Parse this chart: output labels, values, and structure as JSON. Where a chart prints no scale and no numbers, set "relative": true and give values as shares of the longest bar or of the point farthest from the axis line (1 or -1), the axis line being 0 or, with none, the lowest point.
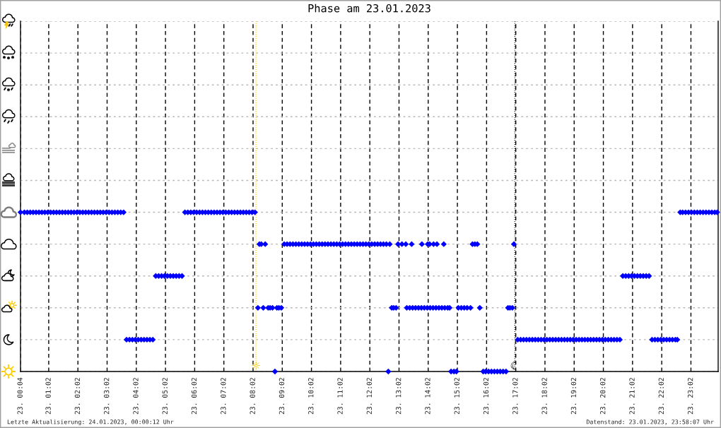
{
  "chart_data": {
    "type": "scatter",
    "title": "Phase am 23.01.2023",
    "color": "#0000ff",
    "marker": "diamond",
    "relative": true,
    "x": [
      "2023-01-23T00:04",
      "2023-01-23T00:12",
      "2023-01-23T00:18",
      "2023-01-23T00:24",
      "2023-01-23T00:30",
      "2023-01-23T00:36",
      "2023-01-23T00:42",
      "2023-01-23T00:48",
      "2023-01-23T00:54",
      "2023-01-23T01:00",
      "2023-01-23T01:06",
      "2023-01-23T01:12",
      "2023-01-23T01:18",
      "2023-01-23T01:24",
      "2023-01-23T01:30",
      "2023-01-23T01:36",
      "2023-01-23T01:42",
      "2023-01-23T01:48",
      "2023-01-23T01:54",
      "2023-01-23T02:00",
      "2023-01-23T02:06",
      "2023-01-23T02:12",
      "2023-01-23T02:18",
      "2023-01-23T02:24",
      "2023-01-23T02:30",
      "2023-01-23T02:36",
      "2023-01-23T02:42",
      "2023-01-23T02:48",
      "2023-01-23T02:54",
      "2023-01-23T03:00",
      "2023-01-23T03:06",
      "2023-01-23T03:12",
      "2023-01-23T03:18",
      "2023-01-23T03:24",
      "2023-01-23T03:30",
      "2023-01-23T03:36",
      "2023-01-23T03:42",
      "2023-01-23T03:48",
      "2023-01-23T03:54",
      "2023-01-23T04:00",
      "2023-01-23T04:06",
      "2023-01-23T04:12",
      "2023-01-23T04:18",
      "2023-01-23T04:24",
      "2023-01-23T04:30",
      "2023-01-23T04:36",
      "2023-01-23T04:42",
      "2023-01-23T04:48",
      "2023-01-23T04:54",
      "2023-01-23T05:00",
      "2023-01-23T05:06",
      "2023-01-23T05:12",
      "2023-01-23T05:18",
      "2023-01-23T05:24",
      "2023-01-23T05:30",
      "2023-01-23T05:36",
      "2023-01-23T05:42",
      "2023-01-23T05:48",
      "2023-01-23T05:54",
      "2023-01-23T06:00",
      "2023-01-23T06:06",
      "2023-01-23T06:12",
      "2023-01-23T06:18",
      "2023-01-23T06:24",
      "2023-01-23T06:30",
      "2023-01-23T06:36",
      "2023-01-23T06:42",
      "2023-01-23T06:48",
      "2023-01-23T06:54",
      "2023-01-23T07:00",
      "2023-01-23T07:06",
      "2023-01-23T07:12",
      "2023-01-23T07:18",
      "2023-01-23T07:24",
      "2023-01-23T07:30",
      "2023-01-23T07:36",
      "2023-01-23T07:42",
      "2023-01-23T07:48",
      "2023-01-23T07:54",
      "2023-01-23T08:00",
      "2023-01-23T08:06",
      "2023-01-23T08:12",
      "2023-01-23T08:15",
      "2023-01-23T08:19",
      "2023-01-23T08:23",
      "2023-01-23T08:27",
      "2023-01-23T08:33",
      "2023-01-23T08:37",
      "2023-01-23T08:42",
      "2023-01-23T08:47",
      "2023-01-23T08:51",
      "2023-01-23T08:55",
      "2023-01-23T09:00",
      "2023-01-23T09:06",
      "2023-01-23T09:12",
      "2023-01-23T09:18",
      "2023-01-23T09:24",
      "2023-01-23T09:30",
      "2023-01-23T09:36",
      "2023-01-23T09:42",
      "2023-01-23T09:48",
      "2023-01-23T09:54",
      "2023-01-23T10:00",
      "2023-01-23T10:06",
      "2023-01-23T10:12",
      "2023-01-23T10:18",
      "2023-01-23T10:24",
      "2023-01-23T10:30",
      "2023-01-23T10:36",
      "2023-01-23T10:42",
      "2023-01-23T10:48",
      "2023-01-23T10:54",
      "2023-01-23T11:00",
      "2023-01-23T11:06",
      "2023-01-23T11:12",
      "2023-01-23T11:18",
      "2023-01-23T11:24",
      "2023-01-23T11:30",
      "2023-01-23T11:36",
      "2023-01-23T11:42",
      "2023-01-23T11:48",
      "2023-01-23T11:54",
      "2023-01-23T12:00",
      "2023-01-23T12:06",
      "2023-01-23T12:12",
      "2023-01-23T12:18",
      "2023-01-23T12:24",
      "2023-01-23T12:30",
      "2023-01-23T12:36",
      "2023-01-23T12:40",
      "2023-01-23T12:43",
      "2023-01-23T12:47",
      "2023-01-23T12:51",
      "2023-01-23T12:56",
      "2023-01-23T13:00",
      "2023-01-23T13:08",
      "2023-01-23T13:16",
      "2023-01-23T13:18",
      "2023-01-23T13:24",
      "2023-01-23T13:28",
      "2023-01-23T13:30",
      "2023-01-23T13:36",
      "2023-01-23T13:42",
      "2023-01-23T13:48",
      "2023-01-23T13:49",
      "2023-01-23T13:54",
      "2023-01-23T14:00",
      "2023-01-23T14:01",
      "2023-01-23T14:05",
      "2023-01-23T14:06",
      "2023-01-23T14:12",
      "2023-01-23T14:13",
      "2023-01-23T14:18",
      "2023-01-23T14:20",
      "2023-01-23T14:24",
      "2023-01-23T14:30",
      "2023-01-23T14:34",
      "2023-01-23T14:36",
      "2023-01-23T14:42",
      "2023-01-23T14:46",
      "2023-01-23T14:49",
      "2023-01-23T14:55",
      "2023-01-23T15:00",
      "2023-01-23T15:04",
      "2023-01-23T15:10",
      "2023-01-23T15:16",
      "2023-01-23T15:22",
      "2023-01-23T15:29",
      "2023-01-23T15:33",
      "2023-01-23T15:38",
      "2023-01-23T15:43",
      "2023-01-23T15:48",
      "2023-01-23T15:55",
      "2023-01-23T16:00",
      "2023-01-23T16:06",
      "2023-01-23T16:12",
      "2023-01-23T16:18",
      "2023-01-23T16:24",
      "2023-01-23T16:30",
      "2023-01-23T16:36",
      "2023-01-23T16:42",
      "2023-01-23T16:46",
      "2023-01-23T16:50",
      "2023-01-23T16:55",
      "2023-01-23T16:58",
      "2023-01-23T17:06",
      "2023-01-23T17:12",
      "2023-01-23T17:18",
      "2023-01-23T17:24",
      "2023-01-23T17:30",
      "2023-01-23T17:36",
      "2023-01-23T17:42",
      "2023-01-23T17:48",
      "2023-01-23T17:54",
      "2023-01-23T18:00",
      "2023-01-23T18:06",
      "2023-01-23T18:12",
      "2023-01-23T18:18",
      "2023-01-23T18:24",
      "2023-01-23T18:30",
      "2023-01-23T18:36",
      "2023-01-23T18:42",
      "2023-01-23T18:48",
      "2023-01-23T18:54",
      "2023-01-23T19:00",
      "2023-01-23T19:06",
      "2023-01-23T19:12",
      "2023-01-23T19:18",
      "2023-01-23T19:24",
      "2023-01-23T19:30",
      "2023-01-23T19:36",
      "2023-01-23T19:42",
      "2023-01-23T19:48",
      "2023-01-23T19:54",
      "2023-01-23T20:00",
      "2023-01-23T20:06",
      "2023-01-23T20:12",
      "2023-01-23T20:18",
      "2023-01-23T20:24",
      "2023-01-23T20:30",
      "2023-01-23T20:36",
      "2023-01-23T20:42",
      "2023-01-23T20:48",
      "2023-01-23T20:54",
      "2023-01-23T21:00",
      "2023-01-23T21:06",
      "2023-01-23T21:12",
      "2023-01-23T21:18",
      "2023-01-23T21:24",
      "2023-01-23T21:30",
      "2023-01-23T21:36",
      "2023-01-23T21:42",
      "2023-01-23T21:48",
      "2023-01-23T21:54",
      "2023-01-23T22:00",
      "2023-01-23T22:06",
      "2023-01-23T22:12",
      "2023-01-23T22:18",
      "2023-01-23T22:24",
      "2023-01-23T22:30",
      "2023-01-23T22:34",
      "2023-01-23T22:40",
      "2023-01-23T22:45",
      "2023-01-23T22:51",
      "2023-01-23T22:57",
      "2023-01-23T23:03",
      "2023-01-23T23:09",
      "2023-01-23T23:15",
      "2023-01-23T23:21",
      "2023-01-23T23:27",
      "2023-01-23T23:33",
      "2023-01-23T23:39",
      "2023-01-23T23:45",
      "2023-01-23T23:51",
      "2023-01-23T23:56"
    ],
    "values": [
      1,
      1,
      1,
      1,
      1,
      1,
      1,
      1,
      1,
      1,
      1,
      1,
      1,
      1,
      1,
      1,
      1,
      1,
      1,
      1,
      1,
      1,
      1,
      1,
      1,
      1,
      1,
      1,
      1,
      1,
      1,
      1,
      1,
      1,
      1,
      1,
      0.2,
      0.2,
      0.2,
      0.2,
      0.2,
      0.2,
      0.2,
      0.2,
      0.2,
      0.2,
      0.6,
      0.6,
      0.6,
      0.6,
      0.6,
      0.6,
      0.6,
      0.6,
      0.6,
      0.6,
      1,
      1,
      1,
      1,
      1,
      1,
      1,
      1,
      1,
      1,
      1,
      1,
      1,
      1,
      1,
      1,
      1,
      1,
      1,
      1,
      1,
      1,
      1,
      1,
      1,
      0.4,
      0.8,
      0.8,
      0.4,
      0.8,
      0.4,
      0.4,
      0.4,
      0,
      0.4,
      0.4,
      0.4,
      0.8,
      0.8,
      0.8,
      0.8,
      0.8,
      0.8,
      0.8,
      0.8,
      0.8,
      0.8,
      0.8,
      0.8,
      0.8,
      0.8,
      0.8,
      0.8,
      0.8,
      0.8,
      0.8,
      0.8,
      0.8,
      0.8,
      0.8,
      0.8,
      0.8,
      0.8,
      0.8,
      0.8,
      0.8,
      0.8,
      0.8,
      0.8,
      0.8,
      0.8,
      0.8,
      0.8,
      0,
      0.8,
      0.4,
      0.4,
      0.4,
      0.8,
      0.8,
      0.8,
      0.4,
      0.4,
      0.8,
      0.4,
      0.4,
      0.4,
      0.4,
      0.8,
      0.4,
      0.4,
      0.8,
      0.8,
      0.4,
      0.4,
      0.8,
      0.4,
      0.8,
      0.4,
      0.4,
      0.8,
      0.4,
      0.4,
      0.4,
      0,
      0,
      0,
      0.4,
      0.4,
      0.4,
      0.4,
      0.4,
      0.8,
      0.8,
      0.8,
      0.4,
      0,
      0,
      0,
      0,
      0,
      0,
      0,
      0,
      0,
      0.4,
      0.4,
      0.4,
      0.8,
      0.2,
      0.2,
      0.2,
      0.2,
      0.2,
      0.2,
      0.2,
      0.2,
      0.2,
      0.2,
      0.2,
      0.2,
      0.2,
      0.2,
      0.2,
      0.2,
      0.2,
      0.2,
      0.2,
      0.2,
      0.2,
      0.2,
      0.2,
      0.2,
      0.2,
      0.2,
      0.2,
      0.2,
      0.2,
      0.2,
      0.2,
      0.2,
      0.2,
      0.2,
      0.2,
      0.2,
      0.6,
      0.6,
      0.6,
      0.6,
      0.6,
      0.6,
      0.6,
      0.6,
      0.6,
      0.6,
      0.2,
      0.2,
      0.2,
      0.2,
      0.2,
      0.2,
      0.2,
      0.2,
      0.2,
      0.2,
      1,
      1,
      1,
      1,
      1,
      1,
      1,
      1,
      1,
      1,
      1,
      1,
      1,
      1
    ],
    "xlim": [
      "2023-01-23T00:04",
      "2023-01-23T23:58"
    ],
    "xticks": [
      {
        "value": "2023-01-23T00:04",
        "label": "23. 00:04"
      },
      {
        "value": "2023-01-23T01:02",
        "label": "23. 01:02"
      },
      {
        "value": "2023-01-23T02:02",
        "label": "23. 02:02"
      },
      {
        "value": "2023-01-23T03:02",
        "label": "23. 03:02"
      },
      {
        "value": "2023-01-23T04:02",
        "label": "23. 04:02"
      },
      {
        "value": "2023-01-23T05:02",
        "label": "23. 05:02"
      },
      {
        "value": "2023-01-23T06:02",
        "label": "23. 06:02"
      },
      {
        "value": "2023-01-23T07:02",
        "label": "23. 07:02"
      },
      {
        "value": "2023-01-23T08:02",
        "label": "23. 08:02"
      },
      {
        "value": "2023-01-23T09:02",
        "label": "23. 09:02"
      },
      {
        "value": "2023-01-23T10:02",
        "label": "23. 10:02"
      },
      {
        "value": "2023-01-23T11:02",
        "label": "23. 11:02"
      },
      {
        "value": "2023-01-23T12:02",
        "label": "23. 12:02"
      },
      {
        "value": "2023-01-23T13:02",
        "label": "23. 13:02"
      },
      {
        "value": "2023-01-23T14:02",
        "label": "23. 14:02"
      },
      {
        "value": "2023-01-23T15:02",
        "label": "23. 15:02"
      },
      {
        "value": "2023-01-23T16:02",
        "label": "23. 16:02"
      },
      {
        "value": "2023-01-23T17:02",
        "label": "23. 17:02"
      },
      {
        "value": "2023-01-23T18:02",
        "label": "23. 18:02"
      },
      {
        "value": "2023-01-23T19:02",
        "label": "23. 19:02"
      },
      {
        "value": "2023-01-23T20:02",
        "label": "23. 20:02"
      },
      {
        "value": "2023-01-23T21:02",
        "label": "23. 21:02"
      },
      {
        "value": "2023-01-23T22:02",
        "label": "23. 22:02"
      },
      {
        "value": "2023-01-23T23:02",
        "label": "23. 23:02"
      }
    ],
    "tick_labels": "x",
    "grid": true,
    "ref_lines": [
      {
        "axis": "x",
        "value": "2023-01-23T08:08",
        "label": "☼",
        "color": "#f5c400",
        "line_style": "dotted"
      },
      {
        "axis": "x",
        "value": "2023-01-23T17:00",
        "label": "☾",
        "color": "#000000",
        "line_style": "dotted"
      }
    ],
    "annotations": [
      "Letzte Aktualisierung: 24.01.2023, 00:00:12 Uhr",
      "Datenstand: 23.01.2023, 23:58:07 Uhr"
    ]
  }
}
